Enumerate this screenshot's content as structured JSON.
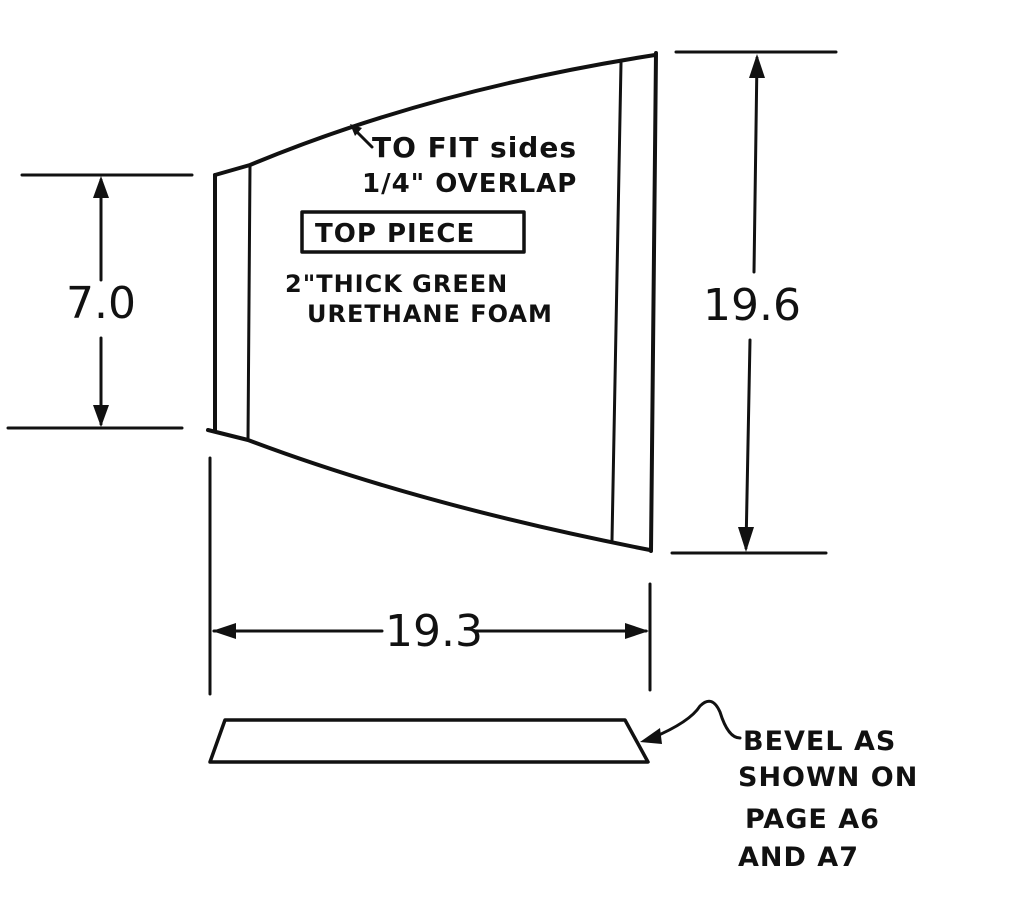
{
  "drawing": {
    "note_fit": "TO FIT sides",
    "note_overlap": "1/4\" OVERLAP",
    "title_box": "TOP PIECE",
    "material_line1": "2\"THICK GREEN",
    "material_line2": "URETHANE FOAM",
    "dim_left": "7.0",
    "dim_right": "19.6",
    "dim_bottom": "19.3",
    "bevel_line1": "BEVEL AS",
    "bevel_line2": "SHOWN ON",
    "bevel_line3": "PAGE A6",
    "bevel_line4": "AND A7"
  }
}
